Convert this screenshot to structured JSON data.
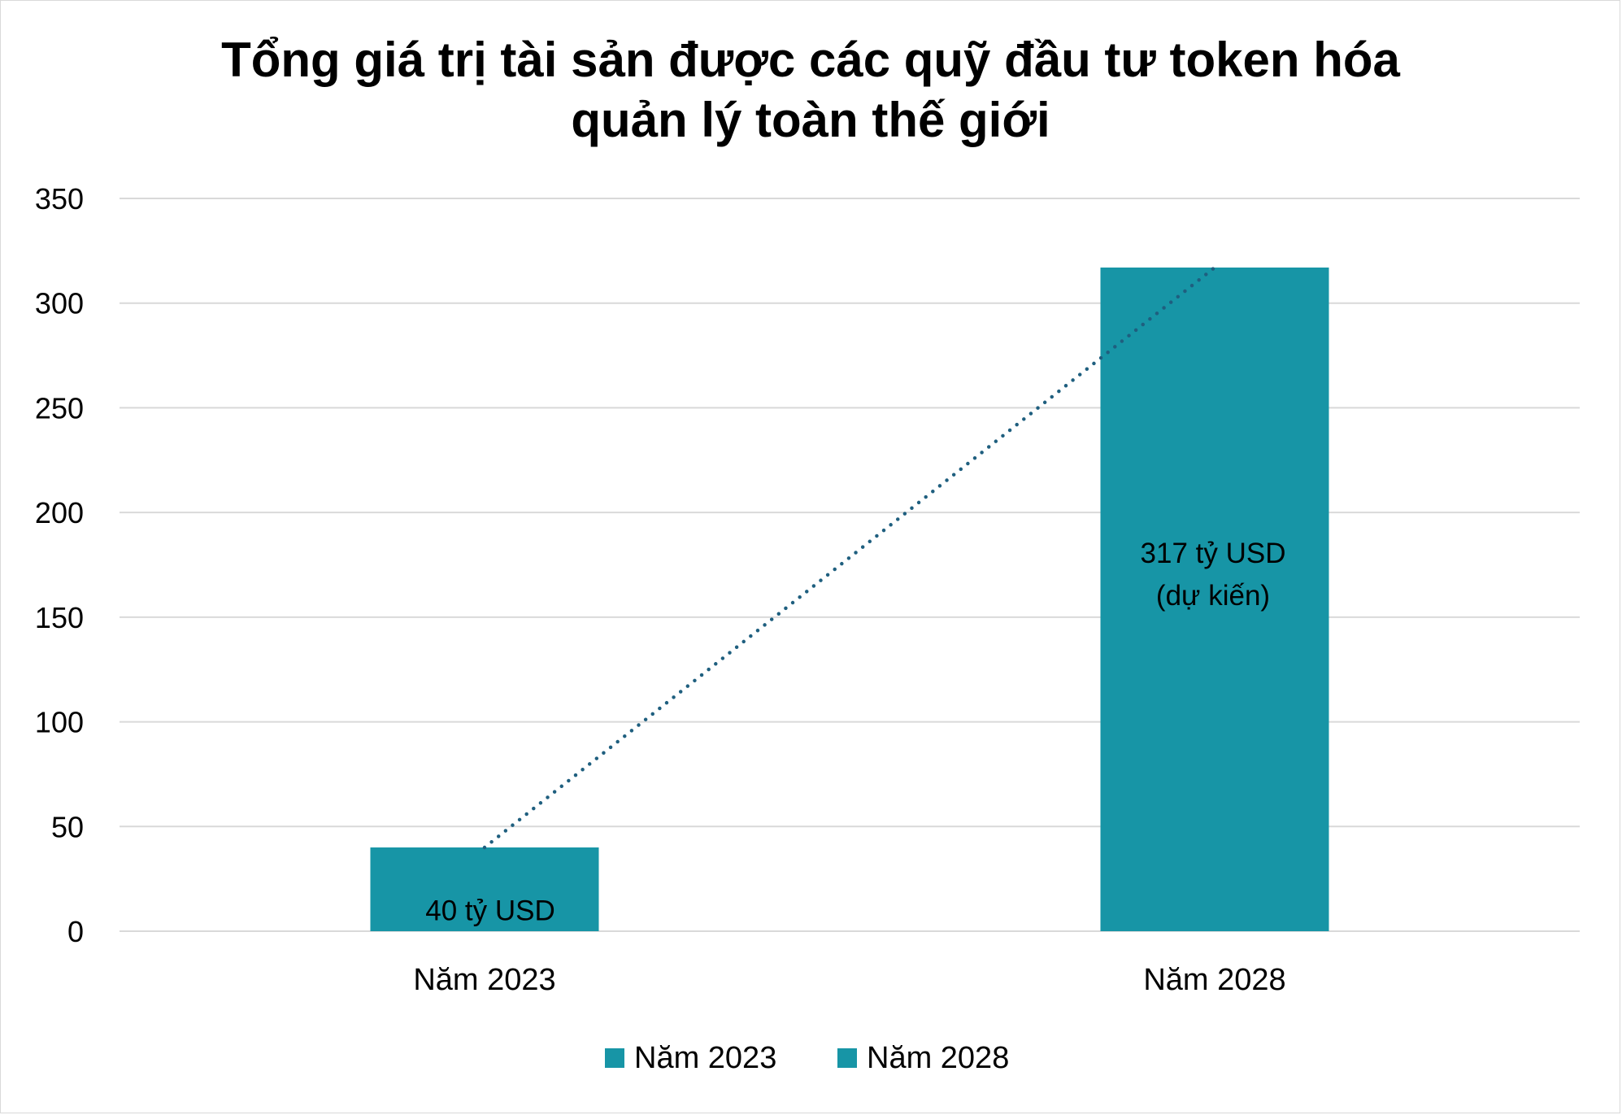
{
  "chart_data": {
    "type": "bar",
    "title_lines": [
      "Tổng giá trị tài sản được các quỹ đầu tư token hóa",
      "quản lý toàn thế giới"
    ],
    "categories": [
      "Năm 2023",
      "Năm 2028"
    ],
    "values": [
      40,
      317
    ],
    "data_labels": [
      [
        "40 tỷ USD"
      ],
      [
        "317 tỷ USD",
        "(dự kiến)"
      ]
    ],
    "yticks": [
      "0",
      "50",
      "100",
      "150",
      "200",
      "250",
      "300",
      "350"
    ],
    "ylim": [
      0,
      350
    ],
    "grid": true,
    "legend": {
      "position": "bottom",
      "entries": [
        "Năm 2023",
        "Năm 2028"
      ]
    },
    "trendline": {
      "type": "linear",
      "style": "dotted"
    },
    "colors": {
      "bar": "#1795A6",
      "trendline": "#1F5F7F",
      "grid": "#D9D9D9"
    }
  }
}
